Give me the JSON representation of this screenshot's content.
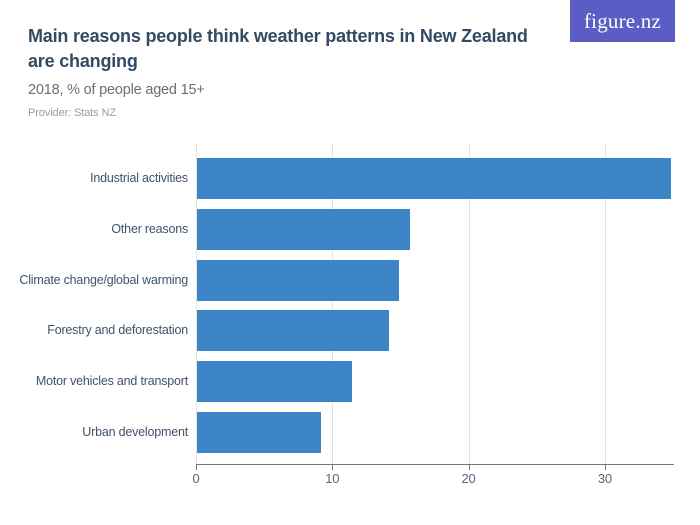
{
  "logo": {
    "text": "figure.nz",
    "background_color": "#5a5ec4",
    "text_color": "#ffffff"
  },
  "header": {
    "title": "Main reasons people think weather patterns in New Zealand are changing",
    "title_line1": "Main reasons people think weather patterns in New Zealand",
    "title_line2": "are changing",
    "subtitle": "2018, % of people aged 15+",
    "provider": "Provider: Stats NZ"
  },
  "colors": {
    "bar": "#3c86c8",
    "title": "#334a63",
    "subtitle": "#6f6f6f",
    "provider": "#9c9c9c",
    "category_label": "#40526a",
    "tick_label": "#53687e",
    "gridline": "#e3e3e3",
    "axis": "#777777"
  },
  "chart_data": {
    "type": "bar",
    "orientation": "horizontal",
    "title": "Main reasons people think weather patterns in New Zealand are changing",
    "subtitle": "2018, % of people aged 15+",
    "provider": "Stats NZ",
    "categories": [
      "Industrial activities",
      "Other reasons",
      "Climate change/global warming",
      "Forestry and deforestation",
      "Motor vehicles and transport",
      "Urban development"
    ],
    "values": [
      34.8,
      15.6,
      14.8,
      14.1,
      11.4,
      9.1
    ],
    "unit": "%",
    "xlabel": "",
    "ylabel": "",
    "xlim": [
      0,
      35
    ],
    "xticks": [
      0,
      10,
      20,
      30
    ],
    "grid": true,
    "legend": false
  }
}
